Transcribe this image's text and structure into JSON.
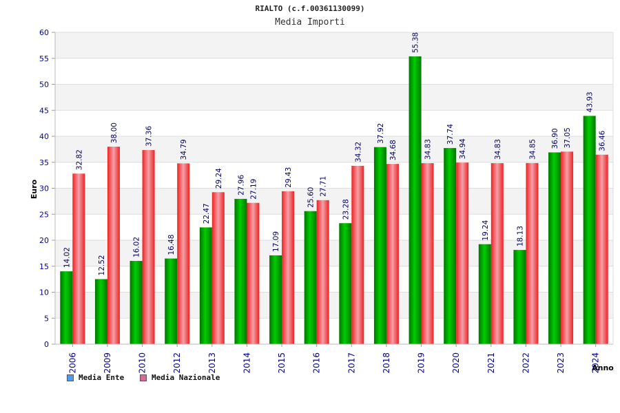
{
  "colors": {
    "ente": "#00cc00",
    "ente_dark": "#007700",
    "nazionale": "#ee2222",
    "nazionale_light": "#f4a0a8",
    "axis_text": "#000099",
    "value_text": "#000066",
    "band": "#f3f3f3",
    "legend_ente": "#5599ee",
    "legend_nazionale": "#dd6699"
  },
  "chart_data": {
    "type": "bar",
    "title": "RIALTO (c.f.00361130099)",
    "subtitle": "Media Importi",
    "xlabel": "Anno",
    "ylabel": "Euro",
    "ylim": [
      0,
      60
    ],
    "yticks": [
      0,
      5,
      10,
      15,
      20,
      25,
      30,
      35,
      40,
      45,
      50,
      55,
      60
    ],
    "grid": true,
    "legend_position": "bottom-left",
    "categories": [
      "2006",
      "2009",
      "2010",
      "2012",
      "2013",
      "2014",
      "2015",
      "2016",
      "2017",
      "2018",
      "2019",
      "2020",
      "2021",
      "2022",
      "2023",
      "2024"
    ],
    "series": [
      {
        "name": "Media Ente",
        "values": [
          14.02,
          12.52,
          16.02,
          16.48,
          22.47,
          27.96,
          17.09,
          25.6,
          23.28,
          37.92,
          55.38,
          37.74,
          19.24,
          18.13,
          36.9,
          43.93
        ],
        "labels": [
          "14.02",
          "12.52",
          "16.02",
          "16.48",
          "22.47",
          "27.96",
          "17.09",
          "25.60",
          "23.28",
          "37.92",
          "55.38",
          "37.74",
          "19.24",
          "18.13",
          "36.90",
          "43.93"
        ]
      },
      {
        "name": "Media Nazionale",
        "values": [
          32.82,
          38.0,
          37.36,
          34.79,
          29.24,
          27.19,
          29.43,
          27.71,
          34.32,
          34.68,
          34.83,
          34.94,
          34.83,
          34.85,
          37.05,
          36.46
        ],
        "labels": [
          "32.82",
          "38.00",
          "37.36",
          "34.79",
          "29.24",
          "27.19",
          "29.43",
          "27.71",
          "34.32",
          "34.68",
          "34.83",
          "34.94",
          "34.83",
          "34.85",
          "37.05",
          "36.46"
        ]
      }
    ]
  }
}
